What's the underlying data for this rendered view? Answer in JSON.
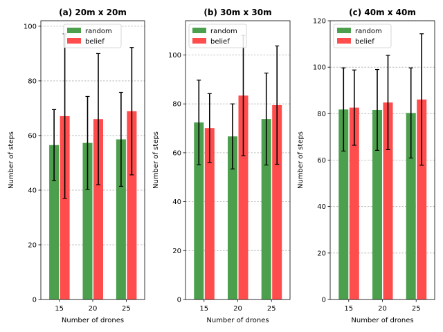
{
  "chart_data": [
    {
      "type": "bar",
      "title": "(a) 20m x 20m",
      "xlabel": "Number of drones",
      "ylabel": "Number of steps",
      "categories": [
        "15",
        "20",
        "25"
      ],
      "ylim": [
        0,
        102
      ],
      "yticks": [
        0,
        20,
        40,
        60,
        80,
        100
      ],
      "grid": "y-dashed",
      "legend_position": "top-center",
      "series": [
        {
          "name": "random",
          "color": "#4c9f4c",
          "values": [
            56.5,
            57.3,
            58.6
          ],
          "errors": [
            13.0,
            17.0,
            17.2
          ]
        },
        {
          "name": "belief",
          "color": "#ff4c4c",
          "values": [
            67.1,
            66.0,
            68.9
          ],
          "errors": [
            30.1,
            24.0,
            23.3
          ]
        }
      ]
    },
    {
      "type": "bar",
      "title": "(b) 30m x 30m",
      "xlabel": "Number of drones",
      "ylabel": "Number of steps",
      "categories": [
        "15",
        "20",
        "25"
      ],
      "ylim": [
        0,
        114
      ],
      "yticks": [
        0,
        20,
        40,
        60,
        80,
        100
      ],
      "grid": "y-dashed",
      "legend_position": "top-left",
      "series": [
        {
          "name": "random",
          "color": "#4c9f4c",
          "values": [
            72.4,
            66.7,
            73.8
          ],
          "errors": [
            17.3,
            13.3,
            18.8
          ]
        },
        {
          "name": "belief",
          "color": "#ff4c4c",
          "values": [
            70.1,
            83.4,
            79.5
          ],
          "errors": [
            14.1,
            24.6,
            24.2
          ]
        }
      ]
    },
    {
      "type": "bar",
      "title": "(c) 40m x 40m",
      "xlabel": "Number of drones",
      "ylabel": "Number of steps",
      "categories": [
        "15",
        "20",
        "25"
      ],
      "ylim": [
        0,
        120
      ],
      "yticks": [
        0,
        20,
        40,
        60,
        80,
        100,
        120
      ],
      "grid": "y-dashed",
      "legend_position": "top-left",
      "series": [
        {
          "name": "random",
          "color": "#4c9f4c",
          "values": [
            81.8,
            81.6,
            80.3
          ],
          "errors": [
            17.9,
            17.4,
            19.4
          ]
        },
        {
          "name": "belief",
          "color": "#ff4c4c",
          "values": [
            82.6,
            84.8,
            86.1
          ],
          "errors": [
            16.2,
            20.3,
            28.3
          ]
        }
      ]
    }
  ]
}
